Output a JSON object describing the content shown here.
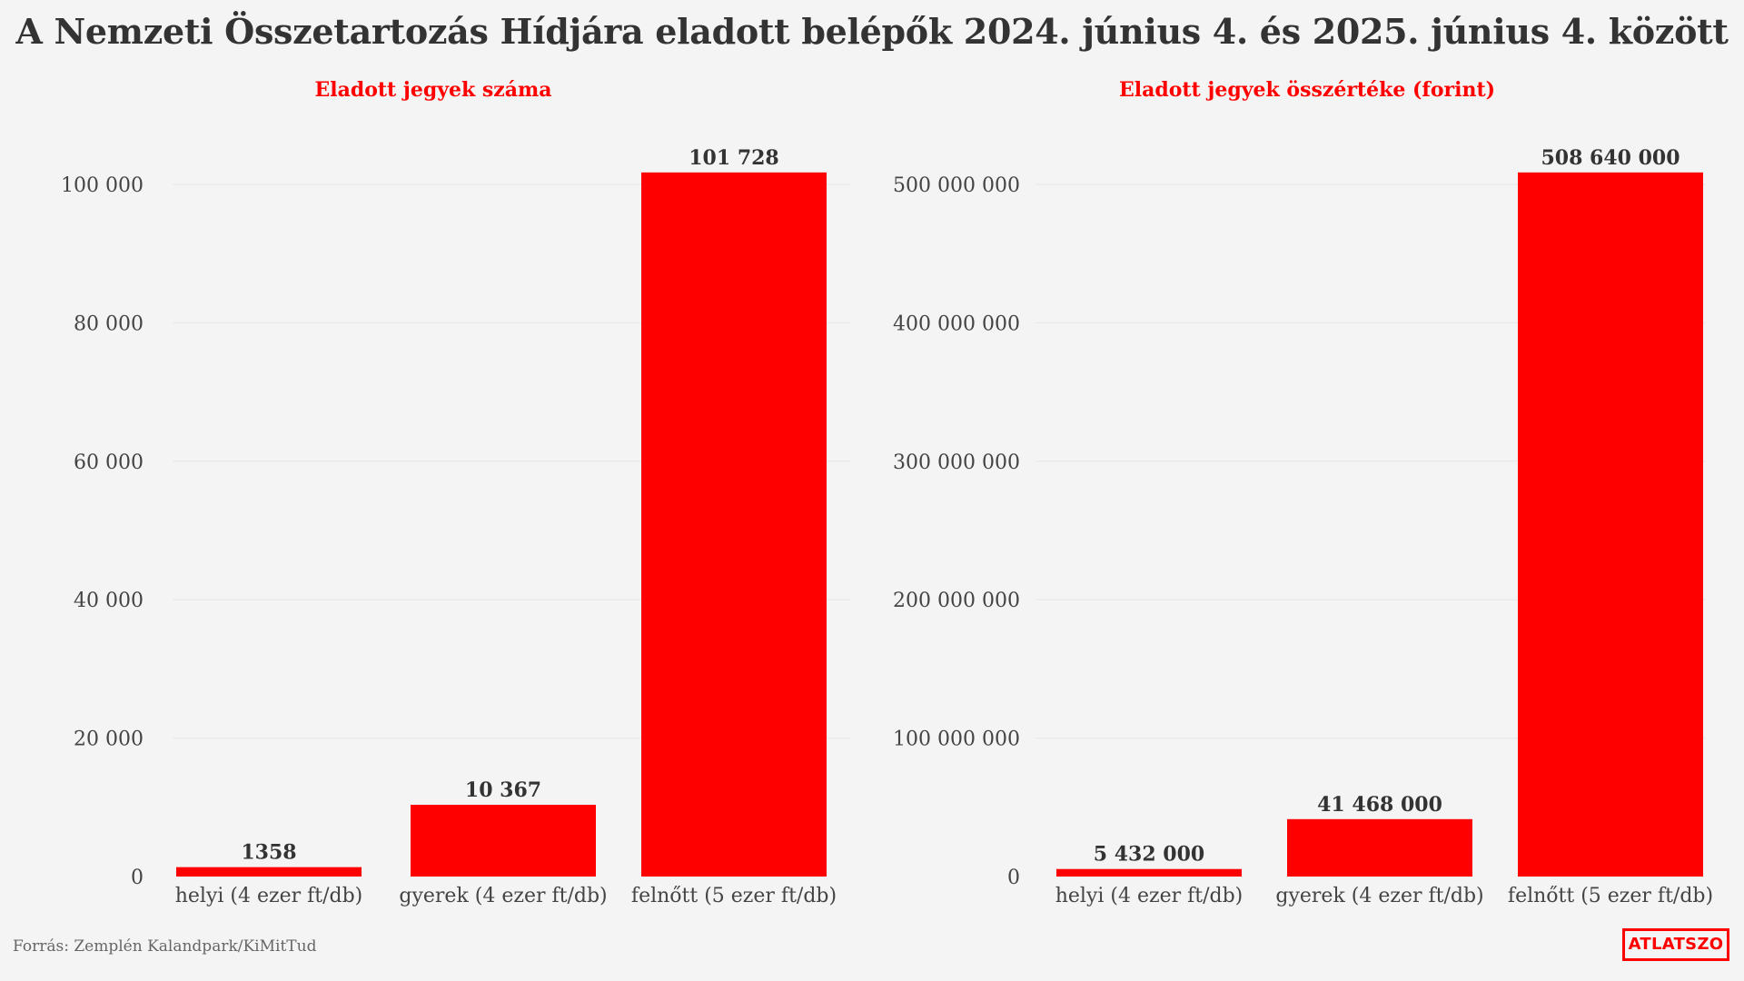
{
  "title": "A Nemzeti Összetartozás Hídjára eladott belépők 2024. június 4. és 2025. június 4. között",
  "source": "Forrás: Zemplén Kalandpark/KiMitTud",
  "logo_text": "ATLATSZO",
  "colors": {
    "bar": "#ff0000",
    "subtitle": "#ff0000",
    "grid": "#e6e6e6",
    "text": "#333333",
    "background": "#f4f4f4"
  },
  "chart_data": [
    {
      "type": "bar",
      "title": "Eladott jegyek száma",
      "categories": [
        "helyi (4 ezer ft/db)",
        "gyerek (4 ezer ft/db)",
        "felnőtt (5 ezer ft/db)"
      ],
      "values": [
        1358,
        10367,
        101728
      ],
      "value_labels": [
        "1358",
        "10 367",
        "101 728"
      ],
      "ylim": [
        0,
        100000
      ],
      "yticks": [
        0,
        20000,
        40000,
        60000,
        80000,
        100000
      ],
      "ytick_labels": [
        "0",
        "20 000",
        "40 000",
        "60 000",
        "80 000",
        "100 000"
      ],
      "grid": true,
      "xlabel": "",
      "ylabel": ""
    },
    {
      "type": "bar",
      "title": "Eladott jegyek összértéke (forint)",
      "categories": [
        "helyi (4 ezer ft/db)",
        "gyerek (4 ezer ft/db)",
        "felnőtt (5 ezer ft/db)"
      ],
      "values": [
        5432000,
        41468000,
        508640000
      ],
      "value_labels": [
        "5 432 000",
        "41 468 000",
        "508 640 000"
      ],
      "ylim": [
        0,
        500000000
      ],
      "yticks": [
        0,
        100000000,
        200000000,
        300000000,
        400000000,
        500000000
      ],
      "ytick_labels": [
        "0",
        "100 000 000",
        "200 000 000",
        "300 000 000",
        "400 000 000",
        "500 000 000"
      ],
      "grid": true,
      "xlabel": "",
      "ylabel": ""
    }
  ]
}
